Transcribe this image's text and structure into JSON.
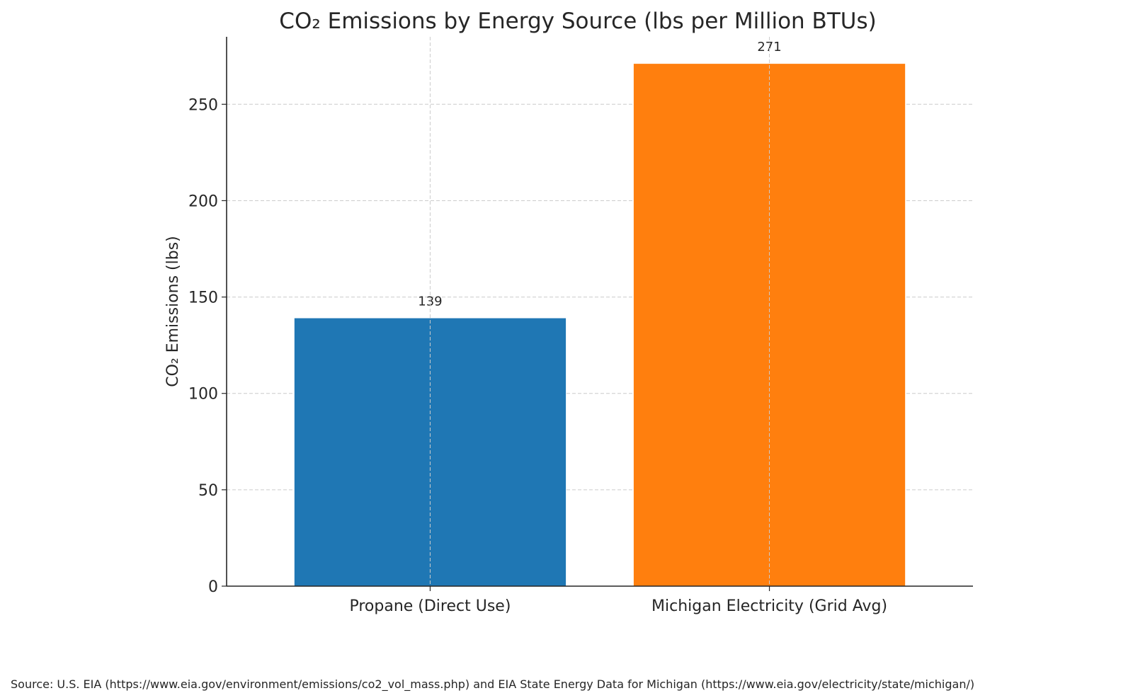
{
  "chart_data": {
    "type": "bar",
    "title": "CO₂ Emissions by Energy Source (lbs per Million BTUs)",
    "xlabel": "",
    "ylabel": "CO₂ Emissions (lbs)",
    "categories": [
      "Propane (Direct Use)",
      "Michigan Electricity (Grid Avg)"
    ],
    "values": [
      139,
      271
    ],
    "data_labels": [
      "139",
      "271"
    ],
    "colors": [
      "#1f77b4",
      "#ff7f0e"
    ],
    "ylim": [
      0,
      285
    ],
    "yticks": [
      0,
      50,
      100,
      150,
      200,
      250
    ],
    "ytick_labels": [
      "0",
      "50",
      "100",
      "150",
      "200",
      "250"
    ],
    "grid": true,
    "source": "Source: U.S. EIA (https://www.eia.gov/environment/emissions/co2_vol_mass.php) and EIA State Energy Data for Michigan (https://www.eia.gov/electricity/state/michigan/)"
  }
}
